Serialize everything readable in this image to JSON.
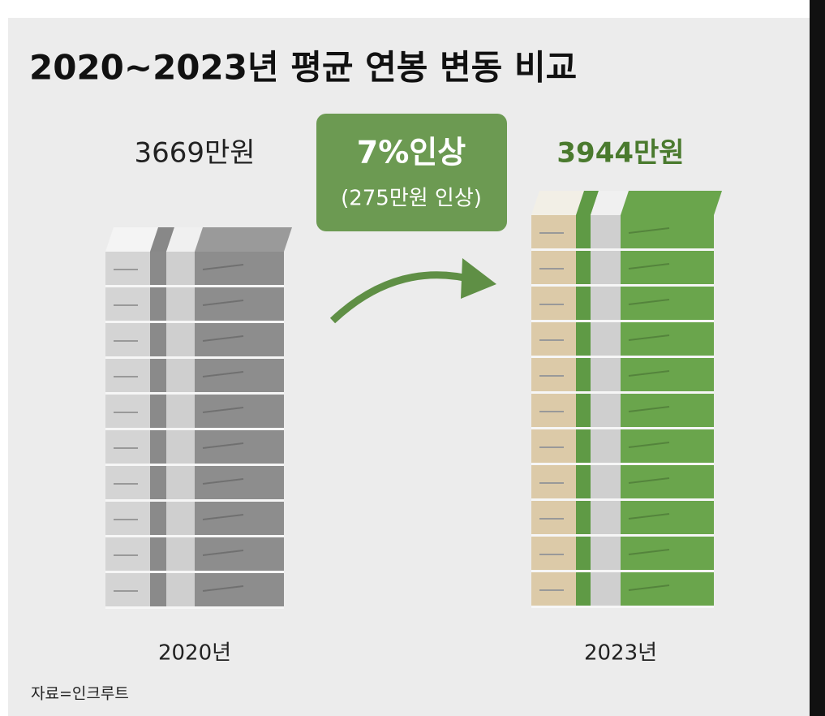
{
  "title": "2020~2023년 평균 연봉 변동 비교",
  "left": {
    "amount": "3669만원",
    "year": "2020년"
  },
  "right": {
    "amount": "3944만원",
    "year": "2023년"
  },
  "badge": {
    "main": "7%인상",
    "sub": "(275만원 인상)"
  },
  "source": "자료=인크루트"
}
